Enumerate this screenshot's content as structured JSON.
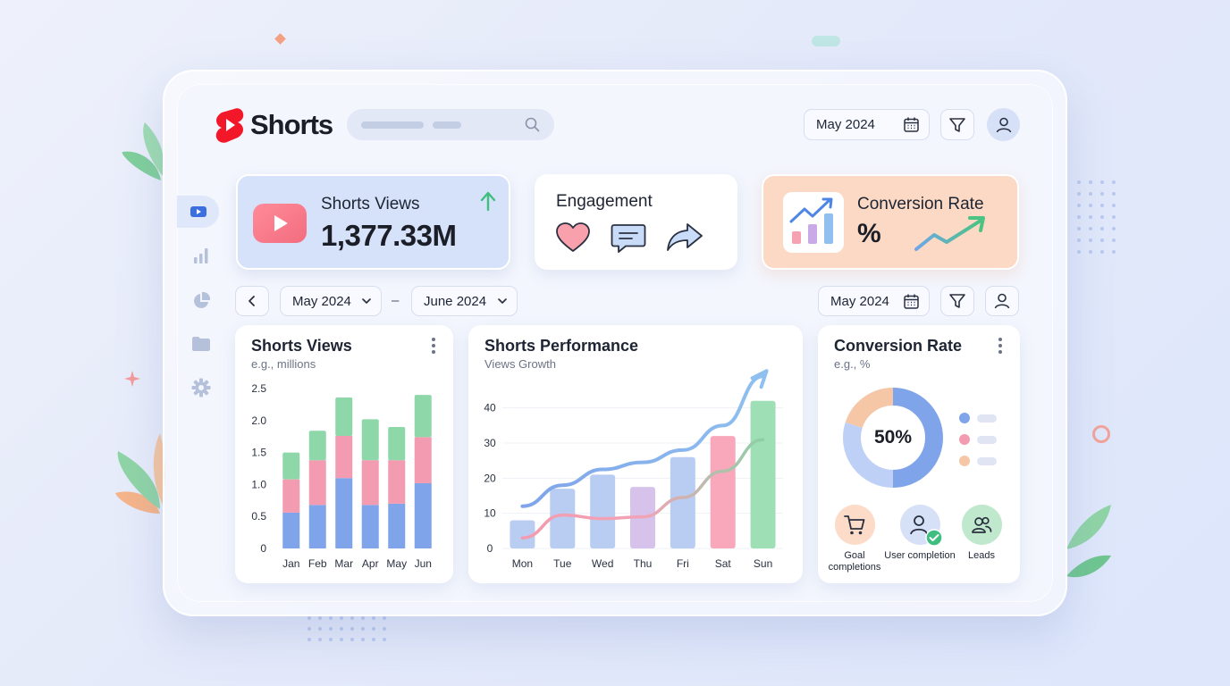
{
  "app": {
    "name": "Shorts"
  },
  "search": {
    "placeholder": ""
  },
  "header": {
    "date": "May 2024"
  },
  "sidebar": {
    "items": [
      "shorts-icon",
      "bar-chart-icon",
      "pie-chart-icon",
      "folder-icon",
      "gear-icon"
    ]
  },
  "kpis": {
    "views": {
      "title": "Shorts Views",
      "value": "1,377.33M"
    },
    "engagement": {
      "title": "Engagement"
    },
    "conversion": {
      "title": "Conversion Rate",
      "value": "%"
    }
  },
  "filters": {
    "range_start": "May 2024",
    "range_sep": "–",
    "range_end": "June 2024",
    "date": "May 2024"
  },
  "colors": {
    "blue": "#7fa4ea",
    "pink": "#f39bb0",
    "green": "#8ed7a8",
    "purple": "#cdb0e6",
    "orange": "#f6c7a7"
  },
  "views_card": {
    "title": "Shorts Views",
    "subtitle": "e.g., millions",
    "chart_data": {
      "type": "bar",
      "stacked": true,
      "categories": [
        "Jan",
        "Feb",
        "Mar",
        "Apr",
        "May",
        "Jun"
      ],
      "series": [
        {
          "color": "#7fa4ea",
          "values": [
            0.56,
            0.68,
            1.1,
            0.68,
            0.7,
            1.02
          ]
        },
        {
          "color": "#f39bb0",
          "values": [
            0.52,
            0.7,
            0.66,
            0.7,
            0.68,
            0.72
          ]
        },
        {
          "color": "#8ed7a8",
          "values": [
            0.42,
            0.46,
            0.6,
            0.64,
            0.52,
            0.66
          ]
        }
      ],
      "yticks": [
        "2.5",
        "2.0",
        "1.5",
        "1.0",
        "0.5",
        "0"
      ],
      "ylim": [
        0,
        2.5
      ]
    }
  },
  "perf_card": {
    "title": "Shorts Performance",
    "subtitle": "Views Growth",
    "chart_data": {
      "type": "bar",
      "categories": [
        "Mon",
        "Tue",
        "Wed",
        "Thu",
        "Fri",
        "Sat",
        "Sun"
      ],
      "values": [
        8,
        17,
        21,
        17.5,
        26,
        32,
        42
      ],
      "bar_colors": [
        "#b9cdf3",
        "#b9cdf3",
        "#b9cdf3",
        "#d7c2ec",
        "#b9cdf3",
        "#f8a8ba",
        "#9edfb5"
      ],
      "lines": [
        {
          "style": "blue-growth-arrow",
          "values": [
            12,
            18,
            22.5,
            24.5,
            28,
            35,
            49
          ]
        },
        {
          "style": "pink-to-green",
          "values": [
            3,
            9.5,
            8.5,
            9,
            14.5,
            22,
            31
          ]
        }
      ],
      "yticks": [
        "40",
        "30",
        "20",
        "10",
        "0"
      ],
      "ylim": [
        0,
        45
      ]
    }
  },
  "conv_card": {
    "title": "Conversion Rate",
    "subtitle": "e.g., %",
    "chart_data": {
      "type": "pie",
      "center_label": "50%",
      "slices": [
        {
          "value": 50,
          "color": "#7fa4ea"
        },
        {
          "value": 30,
          "color": "#bed0f6"
        },
        {
          "value": 20,
          "color": "#f6c7a7"
        }
      ]
    },
    "legend_colors": [
      "#7fa4ea",
      "#f39bb0",
      "#f6c7a7"
    ],
    "metrics": [
      {
        "label": "Goal completions",
        "icon": "cart-icon"
      },
      {
        "label": "User completion",
        "icon": "user-check-icon"
      },
      {
        "label": "Leads",
        "icon": "users-icon"
      }
    ]
  }
}
